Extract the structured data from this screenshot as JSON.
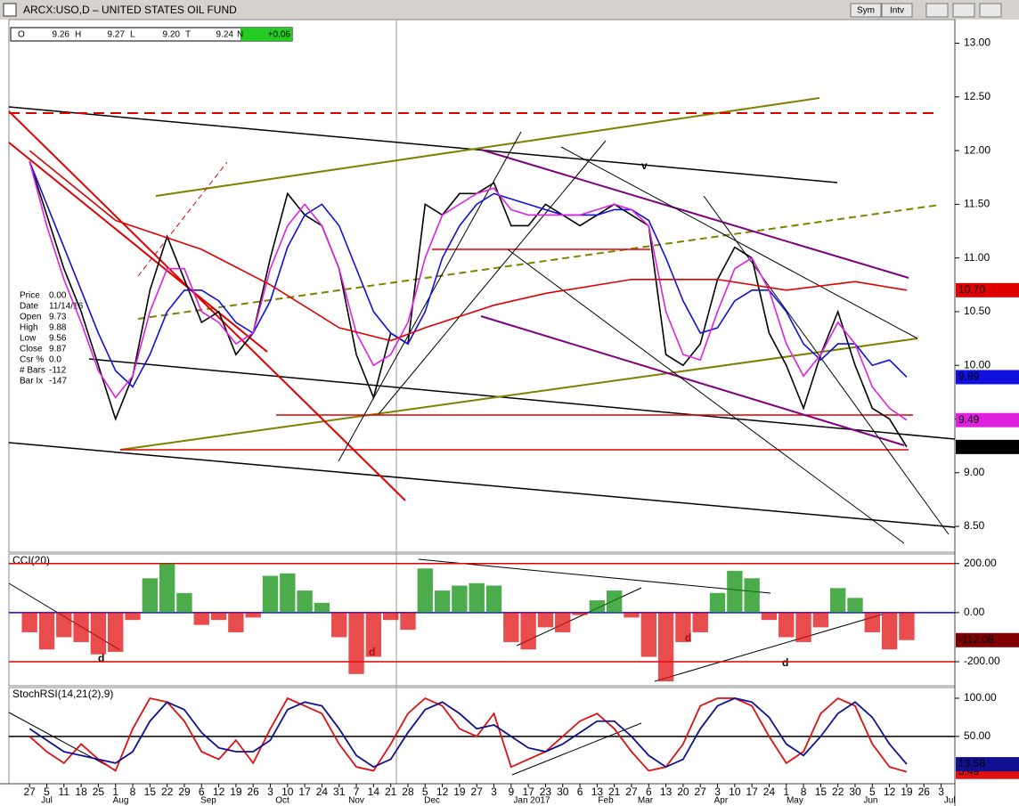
{
  "window": {
    "title": "ARCX:USO,D – UNITED STATES OIL FUND",
    "buttons": [
      "Sym",
      "Intv"
    ]
  },
  "quote": [
    {
      "key": "O",
      "value": "9.26"
    },
    {
      "key": "H",
      "value": "9.27"
    },
    {
      "key": "L",
      "value": "9.20"
    },
    {
      "key": "T",
      "value": "9.24"
    },
    {
      "key": "N",
      "value": "+0.06"
    }
  ],
  "info_box": [
    {
      "key": "Price",
      "value": "0.00"
    },
    {
      "key": "Date",
      "value": "11/14/16"
    },
    {
      "key": "Open",
      "value": "9.73"
    },
    {
      "key": "High",
      "value": "9.88"
    },
    {
      "key": "Low",
      "value": "9.56"
    },
    {
      "key": "Close",
      "value": "9.87"
    },
    {
      "key": "Csr %",
      "value": "0.0"
    },
    {
      "key": "# Bars",
      "value": "-112"
    },
    {
      "key": "Bar Ix",
      "value": "-147"
    }
  ],
  "annotations": [
    "v",
    "d",
    "d",
    "d",
    "d"
  ],
  "chart_data": [
    {
      "type": "line",
      "xlim": [
        -1.2,
        53.8
      ],
      "ylim": [
        8.26,
        13.22
      ],
      "yticks": [
        {
          "value": 8.5,
          "label": "8.50"
        },
        {
          "value": 9,
          "label": "9.00"
        },
        {
          "value": 9.5,
          "label": "9.50"
        },
        {
          "value": 10,
          "label": "10.00"
        },
        {
          "value": 10.5,
          "label": "10.50"
        },
        {
          "value": 11,
          "label": "11.00"
        },
        {
          "value": 11.5,
          "label": "11.50"
        },
        {
          "value": 12,
          "label": "12.00"
        },
        {
          "value": 12.5,
          "label": "12.50"
        },
        {
          "value": 13,
          "label": "13.00"
        }
      ],
      "x": [
        0,
        1,
        2,
        3,
        4,
        5,
        6,
        7,
        8,
        9,
        10,
        11,
        12,
        13,
        14,
        15,
        16,
        17,
        18,
        19,
        20,
        21,
        22,
        23,
        24,
        25,
        26,
        27,
        28,
        29,
        30,
        31,
        32,
        33,
        34,
        35,
        36,
        37,
        38,
        39,
        40,
        41,
        42,
        43,
        44,
        45,
        46,
        47,
        48,
        49,
        50,
        51
      ],
      "series": [
        {
          "name": "Price",
          "color": "#000000",
          "width": 1.6,
          "end_label": "9.24",
          "values": [
            11.9,
            11.4,
            10.9,
            10.5,
            10.0,
            9.5,
            9.9,
            10.7,
            11.2,
            10.8,
            10.4,
            10.5,
            10.1,
            10.3,
            11.0,
            11.6,
            11.4,
            11.3,
            10.9,
            10.1,
            9.7,
            10.3,
            10.2,
            11.5,
            11.4,
            11.6,
            11.6,
            11.7,
            11.3,
            11.3,
            11.5,
            11.4,
            11.3,
            11.4,
            11.5,
            11.4,
            11.3,
            10.1,
            10.0,
            10.2,
            10.8,
            11.1,
            11.0,
            10.3,
            10.0,
            9.6,
            10.1,
            10.5,
            10.0,
            9.6,
            9.5,
            9.24
          ]
        },
        {
          "name": "MA Blue",
          "color": "#1010e0",
          "width": 1.6,
          "end_label": "9.89",
          "values": [
            11.9,
            11.5,
            11.1,
            10.7,
            10.3,
            9.95,
            9.8,
            10.1,
            10.5,
            10.7,
            10.7,
            10.6,
            10.4,
            10.3,
            10.6,
            11.1,
            11.4,
            11.5,
            11.3,
            10.9,
            10.5,
            10.3,
            10.2,
            10.5,
            11.0,
            11.3,
            11.5,
            11.6,
            11.55,
            11.5,
            11.45,
            11.4,
            11.4,
            11.4,
            11.45,
            11.45,
            11.35,
            11.0,
            10.6,
            10.3,
            10.35,
            10.6,
            10.7,
            10.7,
            10.5,
            10.2,
            10.05,
            10.2,
            10.2,
            10.0,
            10.05,
            9.89
          ]
        },
        {
          "name": "MA Magenta",
          "color": "#e020e0",
          "width": 1.6,
          "end_label": "9.49",
          "values": [
            11.9,
            11.3,
            10.8,
            10.4,
            9.95,
            9.7,
            9.9,
            10.5,
            10.9,
            10.9,
            10.5,
            10.4,
            10.2,
            10.3,
            10.9,
            11.3,
            11.5,
            11.3,
            10.9,
            10.3,
            10.0,
            10.1,
            10.4,
            11.0,
            11.4,
            11.5,
            11.6,
            11.65,
            11.45,
            11.4,
            11.4,
            11.4,
            11.4,
            11.45,
            11.5,
            11.45,
            11.3,
            10.5,
            10.1,
            10.05,
            10.5,
            10.9,
            11.0,
            10.7,
            10.2,
            9.9,
            10.1,
            10.4,
            10.2,
            9.8,
            9.6,
            9.49
          ]
        },
        {
          "name": "MA Red",
          "color": "#e00000",
          "width": 1.6,
          "end_label": "10.70",
          "x": [
            0,
            5,
            10,
            14,
            18,
            21,
            23,
            27,
            30,
            35,
            40,
            44,
            48,
            51
          ],
          "values": [
            12.0,
            11.35,
            11.08,
            10.75,
            10.35,
            10.23,
            10.35,
            10.56,
            10.67,
            10.8,
            10.8,
            10.7,
            10.78,
            10.7
          ]
        }
      ]
    },
    {
      "type": "bar",
      "title": "CCI(20)",
      "xlim": [
        -1.2,
        53.8
      ],
      "ylim": [
        -298,
        239
      ],
      "yticks": [
        {
          "value": -200,
          "label": "-200.00"
        },
        {
          "value": 0,
          "label": "0.00"
        },
        {
          "value": 200,
          "label": "200.00"
        }
      ],
      "grid_colors": [
        "#e00000",
        "#0000ff",
        "#e00000"
      ],
      "x": [
        0,
        1,
        2,
        3,
        4,
        5,
        6,
        7,
        8,
        9,
        10,
        11,
        12,
        13,
        14,
        15,
        16,
        17,
        18,
        19,
        20,
        21,
        22,
        23,
        24,
        25,
        26,
        27,
        28,
        29,
        30,
        31,
        32,
        33,
        34,
        35,
        36,
        37,
        38,
        39,
        40,
        41,
        42,
        43,
        44,
        45,
        46,
        47,
        48,
        49,
        50,
        51
      ],
      "series": [
        {
          "name": "CCI",
          "color": "#109010",
          "negative_color": "#e01010",
          "end_color": "#800000",
          "end_label": "-112.08",
          "values": [
            -80,
            -150,
            -100,
            -120,
            -170,
            -160,
            -30,
            140,
            200,
            80,
            -50,
            -30,
            -80,
            -20,
            150,
            160,
            90,
            40,
            -100,
            -250,
            -180,
            -30,
            -70,
            180,
            90,
            110,
            120,
            110,
            -120,
            -150,
            -60,
            -80,
            -10,
            50,
            90,
            -20,
            -180,
            -280,
            -120,
            -80,
            80,
            170,
            140,
            -30,
            -100,
            -120,
            -60,
            100,
            60,
            -80,
            -150,
            -112.08
          ]
        }
      ]
    },
    {
      "type": "line",
      "title": "StochRSI(14,21(2),9)",
      "xlim": [
        -1.2,
        53.8
      ],
      "ylim": [
        -12,
        114
      ],
      "yticks": [
        {
          "value": 50,
          "label": "50.00"
        },
        {
          "value": 100,
          "label": "100.00"
        }
      ],
      "grid_colors": [
        "#000000",
        "none"
      ],
      "xticks": [
        {
          "value": 0,
          "label": "27"
        },
        {
          "value": 1,
          "label": "5"
        },
        {
          "value": 2,
          "label": "11"
        },
        {
          "value": 3,
          "label": "18"
        },
        {
          "value": 4,
          "label": "25"
        },
        {
          "value": 5,
          "label": "1"
        },
        {
          "value": 6,
          "label": "8"
        },
        {
          "value": 7,
          "label": "15"
        },
        {
          "value": 8,
          "label": "22"
        },
        {
          "value": 9,
          "label": "29"
        },
        {
          "value": 10,
          "label": "6"
        },
        {
          "value": 11,
          "label": "12"
        },
        {
          "value": 12,
          "label": "19"
        },
        {
          "value": 13,
          "label": "26"
        },
        {
          "value": 14,
          "label": "3"
        },
        {
          "value": 15,
          "label": "10"
        },
        {
          "value": 16,
          "label": "17"
        },
        {
          "value": 17,
          "label": "24"
        },
        {
          "value": 18,
          "label": "31"
        },
        {
          "value": 19,
          "label": "7"
        },
        {
          "value": 20,
          "label": "14"
        },
        {
          "value": 21,
          "label": "21"
        },
        {
          "value": 22,
          "label": "28"
        },
        {
          "value": 23,
          "label": "5"
        },
        {
          "value": 24,
          "label": "12"
        },
        {
          "value": 25,
          "label": "19"
        },
        {
          "value": 26,
          "label": "27"
        },
        {
          "value": 27,
          "label": "3"
        },
        {
          "value": 28,
          "label": "9"
        },
        {
          "value": 29,
          "label": "17"
        },
        {
          "value": 30,
          "label": "23"
        },
        {
          "value": 31,
          "label": "30"
        },
        {
          "value": 32,
          "label": "6"
        },
        {
          "value": 33,
          "label": "13"
        },
        {
          "value": 34,
          "label": "21"
        },
        {
          "value": 35,
          "label": "27"
        },
        {
          "value": 36,
          "label": "6"
        },
        {
          "value": 37,
          "label": "13"
        },
        {
          "value": 38,
          "label": "20"
        },
        {
          "value": 39,
          "label": "27"
        },
        {
          "value": 40,
          "label": "3"
        },
        {
          "value": 41,
          "label": "10"
        },
        {
          "value": 42,
          "label": "17"
        },
        {
          "value": 43,
          "label": "24"
        },
        {
          "value": 44,
          "label": "1"
        },
        {
          "value": 45,
          "label": "8"
        },
        {
          "value": 46,
          "label": "15"
        },
        {
          "value": 47,
          "label": "22"
        },
        {
          "value": 48,
          "label": "30"
        },
        {
          "value": 49,
          "label": "5"
        },
        {
          "value": 50,
          "label": "12"
        },
        {
          "value": 51,
          "label": "19"
        },
        {
          "value": 52,
          "label": "26"
        },
        {
          "value": 53,
          "label": "3"
        }
      ],
      "month_labels": [
        {
          "value": 1,
          "label": "Jul"
        },
        {
          "value": 5.3,
          "label": "Aug"
        },
        {
          "value": 10.4,
          "label": "Sep"
        },
        {
          "value": 14.7,
          "label": "Oct"
        },
        {
          "value": 19,
          "label": "Nov"
        },
        {
          "value": 23.4,
          "label": "Dec"
        },
        {
          "value": 29.2,
          "label": "Jan 2017"
        },
        {
          "value": 33.5,
          "label": "Feb"
        },
        {
          "value": 35.8,
          "label": "Mar"
        },
        {
          "value": 40.2,
          "label": "Apr"
        },
        {
          "value": 44.5,
          "label": "May"
        },
        {
          "value": 48.9,
          "label": "Jun"
        },
        {
          "value": 53.5,
          "label": "Jul"
        }
      ],
      "x": [
        0,
        1,
        2,
        3,
        4,
        5,
        6,
        7,
        8,
        9,
        10,
        11,
        12,
        13,
        14,
        15,
        16,
        17,
        18,
        19,
        20,
        21,
        22,
        23,
        24,
        25,
        26,
        27,
        28,
        29,
        30,
        31,
        32,
        33,
        34,
        35,
        36,
        37,
        38,
        39,
        40,
        41,
        42,
        43,
        44,
        45,
        46,
        47,
        48,
        49,
        50,
        51
      ],
      "series": [
        {
          "name": "StochRSI",
          "color": "#e01010",
          "width": 1.8,
          "end_label": "3.49",
          "values": [
            50,
            30,
            15,
            40,
            20,
            5,
            60,
            100,
            95,
            70,
            30,
            20,
            45,
            15,
            60,
            100,
            90,
            80,
            40,
            10,
            5,
            40,
            80,
            100,
            90,
            60,
            50,
            80,
            10,
            20,
            30,
            50,
            70,
            80,
            60,
            30,
            5,
            10,
            40,
            90,
            100,
            100,
            90,
            50,
            15,
            30,
            80,
            100,
            90,
            40,
            10,
            3.49
          ]
        },
        {
          "name": "Signal",
          "color": "#101090",
          "width": 1.8,
          "end_label": "13.58",
          "values": [
            60,
            45,
            30,
            25,
            20,
            15,
            30,
            70,
            95,
            85,
            55,
            35,
            30,
            30,
            45,
            85,
            95,
            90,
            60,
            25,
            10,
            20,
            55,
            85,
            95,
            80,
            60,
            65,
            50,
            35,
            30,
            40,
            55,
            70,
            70,
            50,
            25,
            10,
            20,
            60,
            90,
            100,
            95,
            75,
            40,
            25,
            50,
            80,
            95,
            75,
            40,
            13.58
          ]
        }
      ]
    }
  ]
}
